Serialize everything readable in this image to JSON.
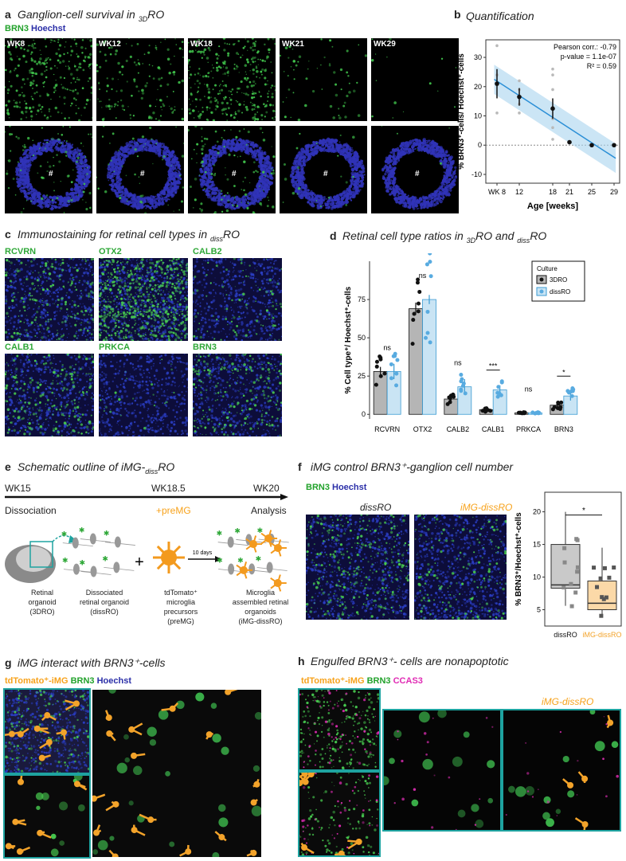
{
  "panel_a": {
    "letter": "a",
    "title": "Ganglion-cell survival in ",
    "title_sub": "3D",
    "title_end": "RO",
    "stain1": "BRN3",
    "stain2": "Hoechst",
    "weeks": [
      "WK8",
      "WK12",
      "WK18",
      "WK21",
      "WK29"
    ],
    "hash": "#",
    "colors": {
      "green": "#3fc04a",
      "blue": "#2b2fa8"
    }
  },
  "panel_b": {
    "letter": "b",
    "title": "Quantification"
  },
  "panel_c": {
    "letter": "c",
    "title": "Immunostaining for retinal cell types in ",
    "title_sub": "diss",
    "title_end": "RO",
    "markers": [
      "RCVRN",
      "OTX2",
      "CALB2",
      "CALB1",
      "PRKCA",
      "BRN3"
    ]
  },
  "panel_d": {
    "letter": "d",
    "title": "Retinal cell type ratios in ",
    "title_sub1": "3D",
    "title_mid": "RO and ",
    "title_sub2": "diss",
    "title_end": "RO",
    "legend_title": "Culture"
  },
  "panel_e": {
    "letter": "e",
    "title": "Schematic outline of iMG-",
    "title_sub": "diss",
    "title_end": "RO",
    "time_labels": [
      "WK15",
      "WK18.5",
      "WK20"
    ],
    "stage_labels": [
      "Dissociation",
      "+preMG",
      "Analysis"
    ],
    "plus": "+",
    "arrow_label": "10 days",
    "captions": [
      [
        "Retinal",
        "organoid",
        "(3DRO)"
      ],
      [
        "Dissociated",
        "retinal organoid",
        "(dissRO)"
      ],
      [
        "tdTomato⁺",
        "microglia",
        "precursors",
        "(preMG)"
      ],
      [
        "Microglia",
        "assembled retinal",
        "organoids",
        "(iMG-dissRO)"
      ]
    ]
  },
  "panel_f": {
    "letter": "f",
    "title": "iMG control BRN3⁺-ganglion cell number",
    "stain1": "BRN3",
    "stain2": "Hoechst",
    "img1_label": "dissRO",
    "img2_label": "iMG-dissRO"
  },
  "panel_g": {
    "letter": "g",
    "title": "iMG interact with BRN3⁺-cells",
    "stain1": "tdTomato⁺-iMG",
    "stain2": "BRN3",
    "stain3": "Hoechst"
  },
  "panel_h": {
    "letter": "h",
    "title": "Engulfed BRN3⁺- cells are nonapoptotic",
    "stain1": "tdTomato⁺-iMG",
    "stain2": "BRN3",
    "stain3": "CCAS3",
    "img_label": "iMG-dissRO"
  },
  "chart_data": [
    {
      "type": "scatter",
      "id": "b",
      "ylabel": "% BRN3⁺-cells/ Hoechst⁺-cells",
      "xlabel": "Age [weeks]",
      "x_ticks": [
        8,
        12,
        18,
        21,
        25,
        29
      ],
      "x_tick_labels": [
        "WK 8",
        "12",
        "18",
        "21",
        "25",
        "29"
      ],
      "y_ticks": [
        -10,
        0,
        10,
        20,
        30
      ],
      "xlim": [
        6,
        30
      ],
      "ylim": [
        -13,
        36
      ],
      "annotations": [
        "Pearson corr.: -0.79",
        "p-value = 1.1e-07",
        "R² = 0.59"
      ],
      "means": [
        {
          "x": 8,
          "y": 21,
          "err": 5
        },
        {
          "x": 12,
          "y": 16.5,
          "err": 3
        },
        {
          "x": 18,
          "y": 12.5,
          "err": 3.5
        },
        {
          "x": 21,
          "y": 1
        },
        {
          "x": 25,
          "y": 0
        },
        {
          "x": 29,
          "y": 0
        }
      ],
      "points": [
        {
          "x": 8,
          "y": 34
        },
        {
          "x": 8,
          "y": 24
        },
        {
          "x": 8,
          "y": 11
        },
        {
          "x": 12,
          "y": 22
        },
        {
          "x": 12,
          "y": 19
        },
        {
          "x": 12,
          "y": 14
        },
        {
          "x": 12,
          "y": 11
        },
        {
          "x": 18,
          "y": 26
        },
        {
          "x": 18,
          "y": 24
        },
        {
          "x": 18,
          "y": 19
        },
        {
          "x": 18,
          "y": 13
        },
        {
          "x": 18,
          "y": 9
        },
        {
          "x": 18,
          "y": 6
        },
        {
          "x": 18,
          "y": 2
        }
      ],
      "fit": {
        "x0": 7.5,
        "y0": 22.5,
        "x1": 29.3,
        "y1": -4.5
      }
    },
    {
      "type": "bar",
      "id": "d",
      "ylabel": "% Cell type⁺/ Hoechst⁺-cells",
      "categories": [
        "RCVRN",
        "OTX2",
        "CALB2",
        "CALB1",
        "PRKCA",
        "BRN3"
      ],
      "y_ticks": [
        0,
        25,
        50,
        75
      ],
      "ylim": [
        -3,
        100
      ],
      "series": [
        {
          "name": "3DRO",
          "values": [
            28,
            69,
            10,
            3,
            1,
            6
          ],
          "errors": [
            3,
            4,
            3,
            1,
            0.5,
            2
          ]
        },
        {
          "name": "dissRO",
          "values": [
            28,
            75,
            18,
            16,
            1,
            12
          ],
          "errors": [
            5,
            3,
            5,
            3,
            0.5,
            3
          ]
        }
      ],
      "significance": [
        "ns",
        "ns",
        "ns",
        "***",
        "ns",
        "*"
      ]
    },
    {
      "type": "box",
      "id": "f",
      "ylabel": "% BRN3⁺/Hoechst⁺-cells",
      "categories": [
        "dissRO",
        "iMG-dissRO"
      ],
      "y_ticks": [
        5,
        10,
        15,
        20
      ],
      "ylim": [
        2.5,
        23
      ],
      "boxes": [
        {
          "q1": 8.3,
          "median": 8.8,
          "q3": 15,
          "min": 5.6,
          "max": 20
        },
        {
          "q1": 5,
          "median": 6,
          "q3": 9.4,
          "min": 3.8,
          "max": 14.5
        }
      ],
      "significance": "*"
    }
  ]
}
